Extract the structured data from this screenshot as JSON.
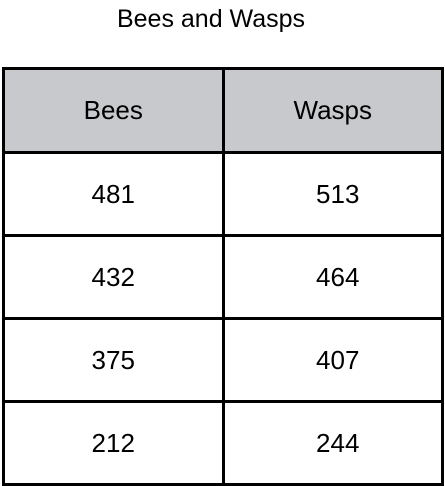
{
  "chart_data": {
    "type": "table",
    "title": "Bees and Wasps",
    "columns": [
      "Bees",
      "Wasps"
    ],
    "rows": [
      [
        "481",
        "513"
      ],
      [
        "432",
        "464"
      ],
      [
        "375",
        "407"
      ],
      [
        "212",
        "244"
      ]
    ]
  }
}
